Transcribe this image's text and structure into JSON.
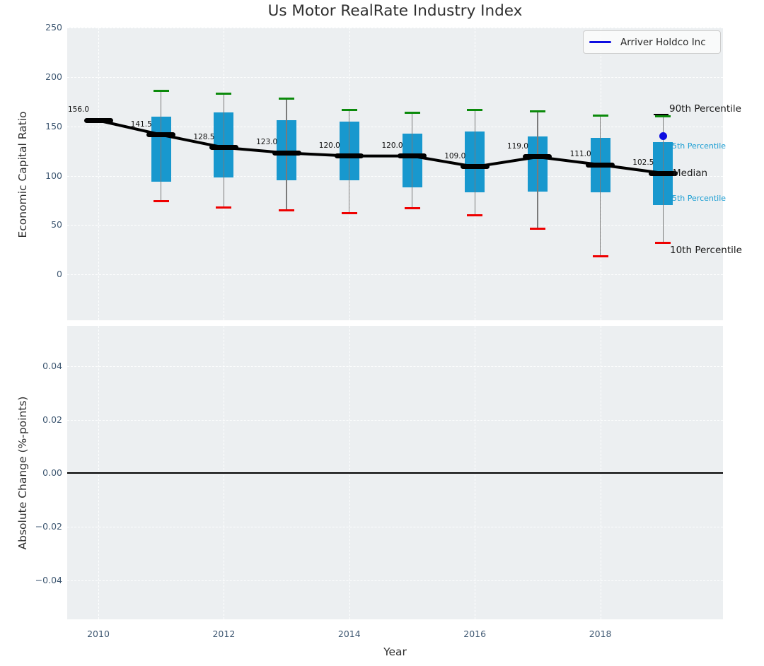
{
  "title": "Us Motor RealRate Industry Index",
  "legend": {
    "label": "Arriver Holdco Inc"
  },
  "axes": {
    "top": {
      "ylabel": "Economic Capital Ratio",
      "ytick_labels": [
        "0",
        "50",
        "100",
        "150",
        "200",
        "250"
      ]
    },
    "bottom": {
      "ylabel": "Absolute Change (%-points)",
      "ytick_labels": [
        "−0.04",
        "−0.02",
        "0.00",
        "0.02",
        "0.04"
      ],
      "xlabel": "Year",
      "xtick_labels": [
        "2010",
        "2012",
        "2014",
        "2016",
        "2018"
      ]
    }
  },
  "percentile_labels": {
    "p90": "90th Percentile",
    "p75": "75th Percentile",
    "median": "Median",
    "p25": "25th Percentile",
    "p10": "10th Percentile"
  },
  "colors": {
    "box_fill": "#1898ce",
    "whisker": "#7a7a7a",
    "cap_high": "#0b8a0b",
    "cap_low": "#ee0000",
    "median": "#000000",
    "company": "#0d0de0",
    "pct_small_text": "#1b9ed3",
    "axes_bg": "#eceff1",
    "tick_text": "#3f5872"
  },
  "chart_data": [
    {
      "type": "box",
      "title": "Us Motor RealRate Industry Index",
      "xlabel": "Year",
      "ylabel": "Economic Capital Ratio",
      "ylim": [
        -47,
        250
      ],
      "xlim": [
        2009.5,
        2019.95
      ],
      "yticks": [
        0,
        50,
        100,
        150,
        200,
        250
      ],
      "xticks": [
        2010,
        2012,
        2014,
        2016,
        2018
      ],
      "grid": true,
      "legend_position": "upper right",
      "years": [
        2010,
        2011,
        2012,
        2013,
        2014,
        2015,
        2016,
        2017,
        2018,
        2019
      ],
      "median": [
        156.0,
        141.5,
        128.5,
        123.0,
        120.0,
        120.0,
        109.0,
        119.0,
        111.0,
        102.5
      ],
      "median_labels": [
        "156.0",
        "141.5",
        "128.5",
        "123.0",
        "120.0",
        "120.0",
        "109.0",
        "119.0",
        "111.0",
        "102.5"
      ],
      "q1_25th_percentile": [
        null,
        94,
        98,
        95,
        95,
        88,
        83,
        84,
        83,
        70
      ],
      "q3_75th_percentile": [
        null,
        160,
        164,
        156,
        155,
        143,
        145,
        140,
        138,
        134
      ],
      "p10_whisker_low": [
        null,
        74,
        68,
        65,
        62,
        67,
        60,
        46,
        18,
        32
      ],
      "p90_whisker_high": [
        null,
        186,
        183,
        178,
        167,
        164,
        167,
        165,
        161,
        160
      ],
      "series": [
        {
          "name": "Arriver Holdco Inc",
          "type": "scatter",
          "x": [
            2019
          ],
          "y": [
            140.5
          ]
        }
      ]
    },
    {
      "type": "line",
      "xlabel": "Year",
      "ylabel": "Absolute Change (%-points)",
      "ylim": [
        -0.055,
        0.055
      ],
      "yticks": [
        -0.04,
        -0.02,
        0.0,
        0.02,
        0.04
      ],
      "xticks": [
        2010,
        2012,
        2014,
        2016,
        2018
      ],
      "grid": true,
      "zero_line": 0.0,
      "series": []
    }
  ]
}
